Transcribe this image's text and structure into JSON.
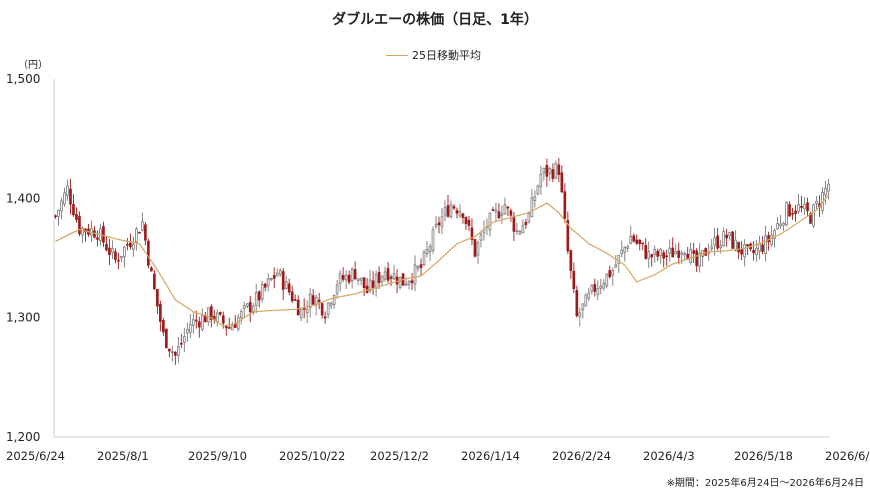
{
  "chart_data": {
    "type": "candlestick",
    "title": "ダブルエーの株価（日足、1年）",
    "ylabel": "（円）",
    "ylim": [
      1200,
      1500
    ],
    "yticks": [
      "1,200",
      "1,300",
      "1,400",
      "1,500"
    ],
    "yticks_values": [
      1200,
      1300,
      1400,
      1500
    ],
    "xticks": [
      "2025/6/24",
      "2025/8/1",
      "2025/9/10",
      "2025/10/22",
      "2025/12/2",
      "2026/1/14",
      "2026/2/24",
      "2026/4/3",
      "2026/5/18",
      "2026/6/24"
    ],
    "legend": [
      "25日移動平均"
    ],
    "legend_position": "top-center",
    "note": "※期間：2025年6月24日〜2026年6月24日",
    "colors": {
      "up": "#7a7a7a",
      "down": "#9e1b1b",
      "ma": "#d6a661",
      "axis": "#cccccc"
    },
    "anchors": [
      [
        0,
        1385
      ],
      [
        4,
        1408
      ],
      [
        8,
        1375
      ],
      [
        14,
        1372
      ],
      [
        20,
        1348
      ],
      [
        26,
        1368
      ],
      [
        29,
        1380
      ],
      [
        32,
        1335
      ],
      [
        36,
        1285
      ],
      [
        40,
        1268
      ],
      [
        45,
        1295
      ],
      [
        52,
        1303
      ],
      [
        58,
        1292
      ],
      [
        62,
        1302
      ],
      [
        68,
        1318
      ],
      [
        74,
        1338
      ],
      [
        78,
        1322
      ],
      [
        82,
        1305
      ],
      [
        86,
        1318
      ],
      [
        90,
        1306
      ],
      [
        94,
        1330
      ],
      [
        100,
        1338
      ],
      [
        104,
        1322
      ],
      [
        110,
        1340
      ],
      [
        116,
        1330
      ],
      [
        122,
        1342
      ],
      [
        128,
        1380
      ],
      [
        132,
        1395
      ],
      [
        136,
        1390
      ],
      [
        140,
        1355
      ],
      [
        144,
        1378
      ],
      [
        150,
        1395
      ],
      [
        154,
        1372
      ],
      [
        158,
        1385
      ],
      [
        162,
        1420
      ],
      [
        168,
        1425
      ],
      [
        171,
        1355
      ],
      [
        174,
        1300
      ],
      [
        180,
        1325
      ],
      [
        186,
        1340
      ],
      [
        192,
        1368
      ],
      [
        198,
        1352
      ],
      [
        204,
        1352
      ],
      [
        210,
        1360
      ],
      [
        214,
        1343
      ],
      [
        218,
        1360
      ],
      [
        224,
        1368
      ],
      [
        228,
        1358
      ],
      [
        232,
        1352
      ],
      [
        238,
        1365
      ],
      [
        244,
        1390
      ],
      [
        248,
        1392
      ],
      [
        252,
        1385
      ],
      [
        255,
        1398
      ],
      [
        258,
        1412
      ]
    ],
    "ma_anchors": [
      [
        0,
        1364
      ],
      [
        8,
        1374
      ],
      [
        14,
        1370
      ],
      [
        22,
        1365
      ],
      [
        28,
        1362
      ],
      [
        34,
        1340
      ],
      [
        40,
        1315
      ],
      [
        46,
        1305
      ],
      [
        52,
        1300
      ],
      [
        56,
        1293
      ],
      [
        60,
        1295
      ],
      [
        66,
        1305
      ],
      [
        72,
        1306
      ],
      [
        80,
        1307
      ],
      [
        86,
        1310
      ],
      [
        92,
        1316
      ],
      [
        100,
        1320
      ],
      [
        108,
        1326
      ],
      [
        116,
        1332
      ],
      [
        122,
        1335
      ],
      [
        128,
        1348
      ],
      [
        134,
        1362
      ],
      [
        140,
        1368
      ],
      [
        146,
        1380
      ],
      [
        152,
        1384
      ],
      [
        158,
        1388
      ],
      [
        164,
        1396
      ],
      [
        168,
        1388
      ],
      [
        172,
        1375
      ],
      [
        178,
        1362
      ],
      [
        184,
        1354
      ],
      [
        190,
        1344
      ],
      [
        194,
        1330
      ],
      [
        200,
        1336
      ],
      [
        206,
        1345
      ],
      [
        212,
        1350
      ],
      [
        218,
        1355
      ],
      [
        224,
        1356
      ],
      [
        230,
        1358
      ],
      [
        236,
        1363
      ],
      [
        242,
        1370
      ],
      [
        248,
        1380
      ],
      [
        254,
        1390
      ],
      [
        258,
        1403
      ]
    ]
  }
}
